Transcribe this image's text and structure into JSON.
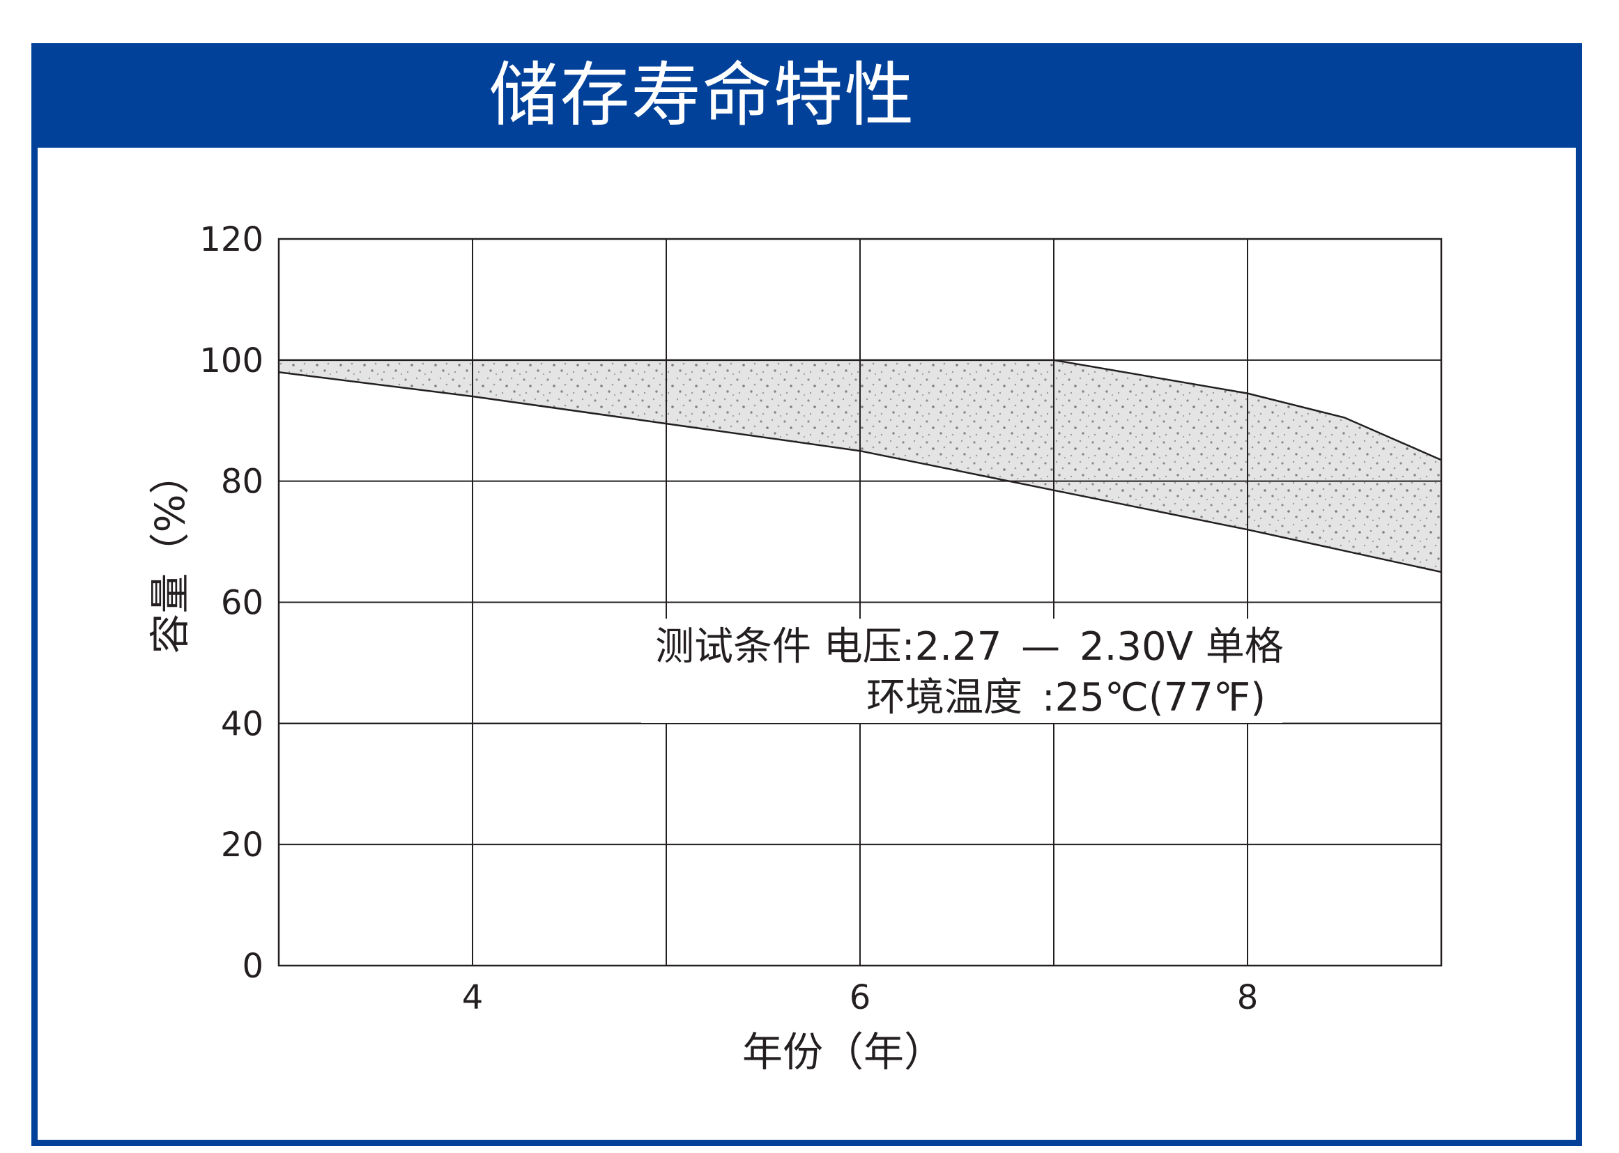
{
  "header": {
    "title": "储存寿命特性"
  },
  "colors": {
    "brand_blue": "#02419a",
    "grid": "#231f20",
    "band_fill": "#d8d8d8",
    "band_dots": "#8a8a8a"
  },
  "chart_data": {
    "type": "area",
    "title": "储存寿命特性",
    "xlabel": "年份（年）",
    "ylabel": "容量（%）",
    "xlim": [
      3,
      9
    ],
    "ylim": [
      0,
      120
    ],
    "xticks": [
      4,
      6,
      8
    ],
    "yticks": [
      0,
      20,
      40,
      60,
      80,
      100,
      120
    ],
    "grid": true,
    "series": [
      {
        "role": "upper",
        "x": [
          3,
          7,
          8,
          8.5,
          9
        ],
        "y": [
          100,
          100,
          94.5,
          90.5,
          83.5
        ]
      },
      {
        "role": "lower",
        "x": [
          3,
          4,
          5,
          6,
          7,
          8,
          9
        ],
        "y": [
          98,
          94,
          89.5,
          85,
          78.5,
          72,
          65
        ]
      }
    ],
    "annotations": {
      "line1_prefix": "测试条件 电压:2.27",
      "line1_dash": "—",
      "line1_suffix": "2.30V 单格",
      "line2_label": "环境温度",
      "line2_value": ":25℃(77℉)"
    }
  }
}
